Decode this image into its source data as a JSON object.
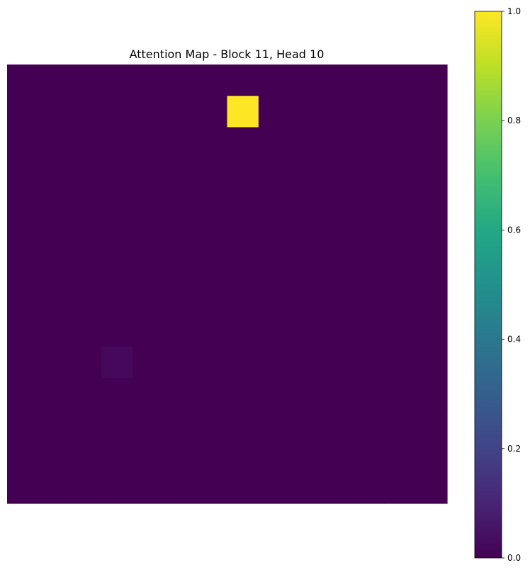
{
  "chart_data": {
    "type": "heatmap",
    "title": "Attention Map - Block 11, Head 10",
    "grid_size": 14,
    "default_value": 0.0,
    "cells": [
      {
        "row": 1,
        "col": 7,
        "value": 1.0
      },
      {
        "row": 9,
        "col": 3,
        "value": 0.02
      }
    ],
    "axes_visible": false,
    "colormap": "viridis",
    "colorbar": {
      "vmin": 0.0,
      "vmax": 1.0,
      "ticks": [
        "0.0",
        "0.2",
        "0.4",
        "0.6",
        "0.8",
        "1.0"
      ],
      "tick_values": [
        0.0,
        0.2,
        0.4,
        0.6,
        0.8,
        1.0
      ],
      "placement": "right"
    }
  }
}
